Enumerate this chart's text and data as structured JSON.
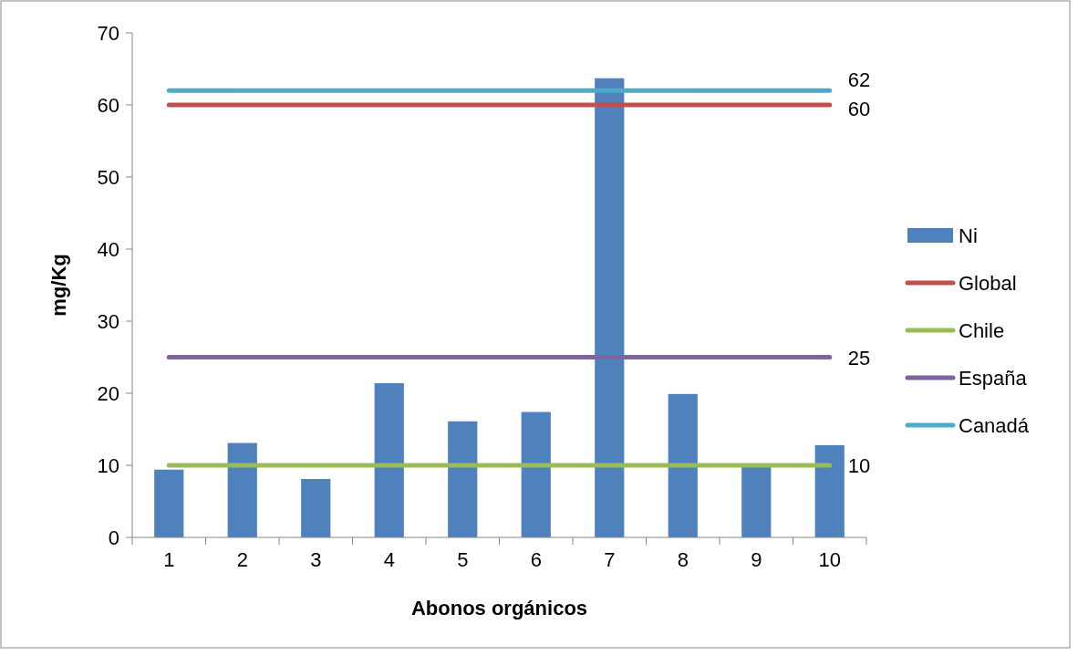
{
  "chart_data": {
    "type": "bar",
    "xlabel": "Abonos orgánicos",
    "ylabel": "mg/Kg",
    "categories": [
      "1",
      "2",
      "3",
      "4",
      "5",
      "6",
      "7",
      "8",
      "9",
      "10"
    ],
    "series": [
      {
        "name": "Ni",
        "color": "#4f81bd",
        "values": [
          9.4,
          13.1,
          8.1,
          21.4,
          16.1,
          17.4,
          63.7,
          19.9,
          10,
          12.8
        ]
      },
      {
        "name": "Global",
        "type": "line",
        "color": "#c0504d",
        "values": [
          60,
          60,
          60,
          60,
          60,
          60,
          60,
          60,
          60,
          60
        ],
        "value_labels": [
          null,
          null,
          null,
          null,
          null,
          null,
          null,
          null,
          null,
          "60"
        ]
      },
      {
        "name": "Chile",
        "type": "line",
        "color": "#9bbb59",
        "values": [
          10,
          10,
          10,
          10,
          10,
          10,
          10,
          10,
          10,
          10
        ],
        "value_labels": [
          null,
          null,
          null,
          null,
          null,
          null,
          null,
          null,
          null,
          "10"
        ]
      },
      {
        "name": "España",
        "type": "line",
        "color": "#8064a2",
        "values": [
          25,
          25,
          25,
          25,
          25,
          25,
          25,
          25,
          25,
          25
        ],
        "value_labels": [
          null,
          null,
          null,
          null,
          null,
          null,
          null,
          null,
          null,
          "25"
        ]
      },
      {
        "name": "Canadá",
        "type": "line",
        "color": "#4bacc6",
        "values": [
          62,
          62,
          62,
          62,
          62,
          62,
          62,
          62,
          62,
          62
        ],
        "value_labels": [
          null,
          null,
          null,
          null,
          null,
          null,
          null,
          null,
          null,
          "62"
        ]
      }
    ],
    "ylim": [
      0,
      70
    ],
    "yticks": [
      0,
      10,
      20,
      30,
      40,
      50,
      60,
      70
    ],
    "grid": false,
    "legend": "right"
  }
}
